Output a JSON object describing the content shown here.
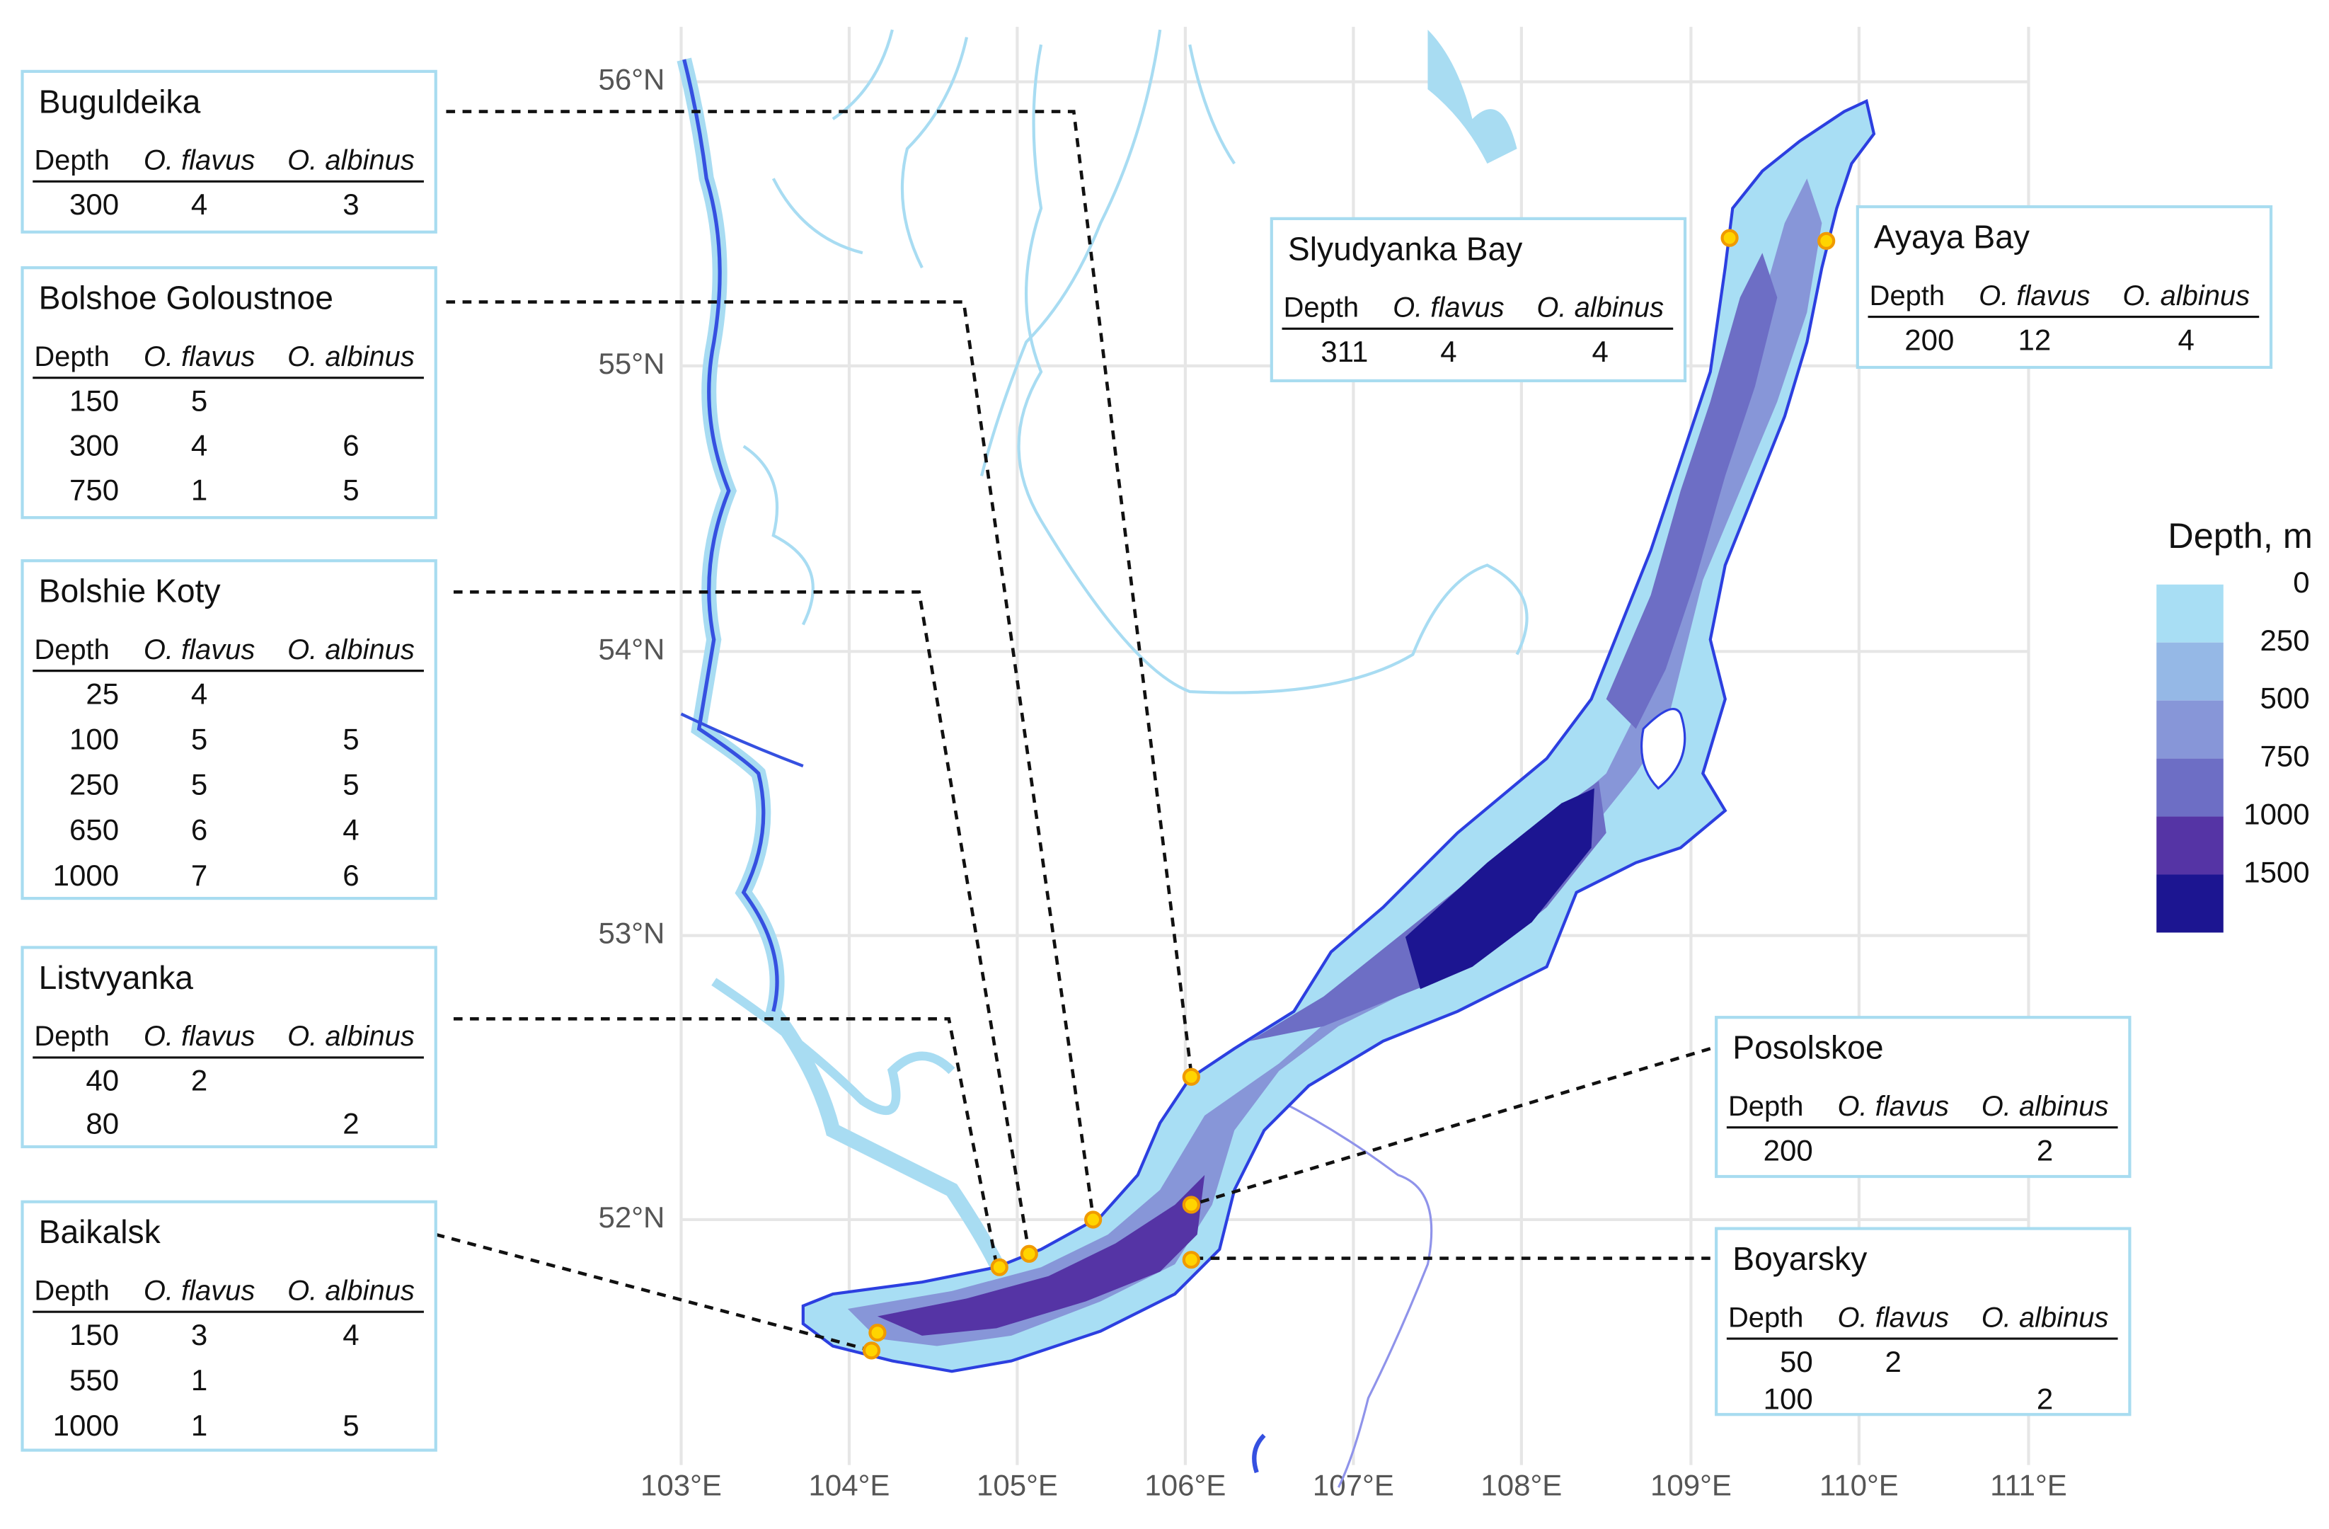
{
  "axes": {
    "lat_ticks": [
      "56°N",
      "55°N",
      "54°N",
      "53°N",
      "52°N"
    ],
    "lon_ticks": [
      "103°E",
      "104°E",
      "105°E",
      "106°E",
      "107°E",
      "108°E",
      "109°E",
      "110°E",
      "111°E"
    ]
  },
  "legend": {
    "title": "Depth, m",
    "labels": [
      0,
      250,
      500,
      750,
      1000,
      1500
    ]
  },
  "sites": [
    {
      "name": "Buguldeika",
      "columns": [
        "Depth",
        "O. flavus",
        "O. albinus"
      ],
      "rows": [
        [
          300,
          4,
          3
        ]
      ]
    },
    {
      "name": "Bolshoe Goloustnoe",
      "columns": [
        "Depth",
        "O. flavus",
        "O. albinus"
      ],
      "rows": [
        [
          150,
          5,
          null
        ],
        [
          300,
          4,
          6
        ],
        [
          750,
          1,
          5
        ]
      ]
    },
    {
      "name": "Bolshie Koty",
      "columns": [
        "Depth",
        "O. flavus",
        "O. albinus"
      ],
      "rows": [
        [
          25,
          4,
          null
        ],
        [
          100,
          5,
          5
        ],
        [
          250,
          5,
          5
        ],
        [
          650,
          6,
          4
        ],
        [
          1000,
          7,
          6
        ]
      ]
    },
    {
      "name": "Listvyanka",
      "columns": [
        "Depth",
        "O. flavus",
        "O. albinus"
      ],
      "rows": [
        [
          40,
          2,
          null
        ],
        [
          80,
          null,
          2
        ]
      ]
    },
    {
      "name": "Baikalsk",
      "columns": [
        "Depth",
        "O. flavus",
        "O. albinus"
      ],
      "rows": [
        [
          150,
          3,
          4
        ],
        [
          550,
          1,
          null
        ],
        [
          1000,
          1,
          5
        ]
      ]
    },
    {
      "name": "Slyudyanka Bay",
      "columns": [
        "Depth",
        "O. flavus",
        "O. albinus"
      ],
      "rows": [
        [
          311,
          4,
          4
        ]
      ]
    },
    {
      "name": "Ayaya Bay",
      "columns": [
        "Depth",
        "O. flavus",
        "O. albinus"
      ],
      "rows": [
        [
          200,
          12,
          4
        ]
      ]
    },
    {
      "name": "Posolskoe",
      "columns": [
        "Depth",
        "O. flavus",
        "O. albinus"
      ],
      "rows": [
        [
          200,
          null,
          2
        ]
      ]
    },
    {
      "name": "Boyarsky",
      "columns": [
        "Depth",
        "O. flavus",
        "O. albinus"
      ],
      "rows": [
        [
          50,
          2,
          null
        ],
        [
          100,
          null,
          2
        ]
      ]
    }
  ]
}
